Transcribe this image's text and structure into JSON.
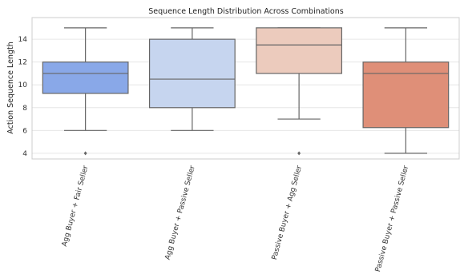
{
  "chart_data": {
    "type": "box",
    "title": "Sequence Length Distribution Across Combinations",
    "xlabel": "",
    "ylabel": "Action Sequence Length",
    "ylim": [
      3.5,
      15.9
    ],
    "yticks": [
      4,
      6,
      8,
      10,
      12,
      14
    ],
    "grid": "horizontal",
    "categories": [
      "Agg Buyer + Fair Seller",
      "Agg Buyer + Passive Seller",
      "Passive Buyer + Agg Seller",
      "Passive Buyer + Passive Seller"
    ],
    "boxes": [
      {
        "category": "Agg Buyer + Fair Seller",
        "whisker_low": 6,
        "q1": 9.25,
        "median": 11,
        "q3": 12,
        "whisker_high": 15,
        "outliers": [
          4
        ],
        "color": "#89a8e8"
      },
      {
        "category": "Agg Buyer + Passive Seller",
        "whisker_low": 6,
        "q1": 8,
        "median": 10.5,
        "q3": 14,
        "whisker_high": 15,
        "outliers": [],
        "color": "#c6d5ef"
      },
      {
        "category": "Passive Buyer + Agg Seller",
        "whisker_low": 7,
        "q1": 11,
        "median": 13.5,
        "q3": 15,
        "whisker_high": 15,
        "outliers": [
          4
        ],
        "color": "#eccbbd"
      },
      {
        "category": "Passive Buyer + Passive Seller",
        "whisker_low": 4,
        "q1": 6.25,
        "median": 11,
        "q3": 12,
        "whisker_high": 15,
        "outliers": [],
        "color": "#df8f78"
      }
    ],
    "colors": {
      "grid": "#e6e6e6",
      "axis": "#cccccc",
      "box_edge": "#666666"
    }
  }
}
